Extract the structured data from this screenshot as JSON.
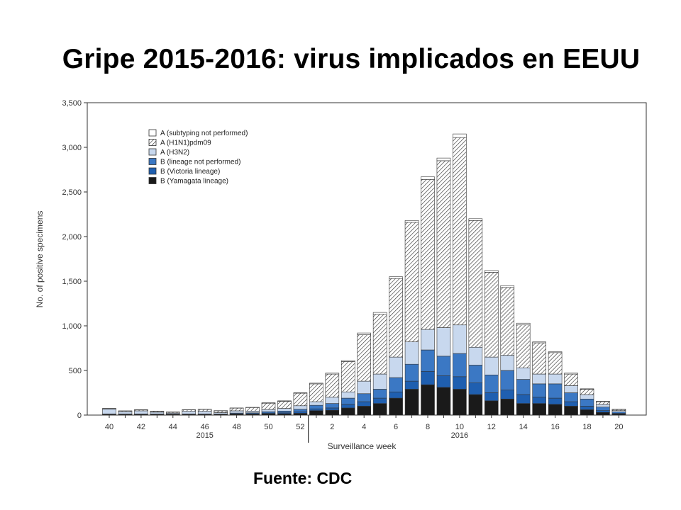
{
  "slide": {
    "title": "Gripe 2015-2016: virus implicados en EEUU",
    "source": "Fuente: CDC"
  },
  "colors": {
    "a_unsubtyped": "#ffffff",
    "a_h1n1": "hatch",
    "a_h3n2": "#c8d8ee",
    "b_lineage_np": "#3b78c4",
    "b_victoria": "#1f5fb0",
    "b_yamagata": "#1a1a1a"
  },
  "chart_data": {
    "type": "bar",
    "stacked": true,
    "title": "",
    "xlabel": "Surveillance week",
    "ylabel": "No. of positive specimens",
    "ylim": [
      0,
      3500
    ],
    "yticks": [
      "0",
      "500",
      "1,000",
      "1,500",
      "2,000",
      "2,500",
      "3,000",
      "3,500"
    ],
    "ytick_values": [
      0,
      500,
      1000,
      1500,
      2000,
      2500,
      3000,
      3500
    ],
    "categories": [
      "40",
      "41",
      "42",
      "43",
      "44",
      "45",
      "46",
      "47",
      "48",
      "49",
      "50",
      "51",
      "52",
      "1",
      "2",
      "3",
      "4",
      "5",
      "6",
      "7",
      "8",
      "9",
      "10",
      "11",
      "12",
      "13",
      "14",
      "15",
      "16",
      "17",
      "18",
      "19",
      "20"
    ],
    "xtick_labels": [
      "40",
      "",
      "42",
      "",
      "44",
      "",
      "46",
      "",
      "48",
      "",
      "50",
      "",
      "52",
      "",
      "2",
      "",
      "4",
      "",
      "6",
      "",
      "8",
      "",
      "10",
      "",
      "12",
      "",
      "14",
      "",
      "16",
      "",
      "18",
      "",
      "20"
    ],
    "year_labels": [
      {
        "label": "2015",
        "at_category": "46"
      },
      {
        "label": "2016",
        "at_category": "10"
      }
    ],
    "year_divider_after": "52",
    "legend": {
      "position": "top-left",
      "entries": [
        "A (subtyping not performed)",
        "A (H1N1)pdm09",
        "A (H3N2)",
        "B (lineage not performed)",
        "B (Victoria lineage)",
        "B (Yamagata lineage)"
      ]
    },
    "series": [
      {
        "name": "B (Yamagata lineage)",
        "values": [
          5,
          5,
          5,
          5,
          5,
          5,
          5,
          5,
          10,
          10,
          15,
          15,
          20,
          50,
          55,
          80,
          100,
          130,
          190,
          290,
          340,
          310,
          290,
          230,
          160,
          180,
          130,
          130,
          120,
          100,
          60,
          30,
          12
        ]
      },
      {
        "name": "B (Victoria lineage)",
        "values": [
          3,
          3,
          3,
          3,
          3,
          3,
          3,
          3,
          5,
          5,
          8,
          10,
          15,
          20,
          25,
          40,
          50,
          60,
          70,
          90,
          150,
          130,
          140,
          130,
          90,
          100,
          100,
          70,
          70,
          50,
          40,
          20,
          8
        ]
      },
      {
        "name": "B (lineage not performed)",
        "values": [
          5,
          5,
          5,
          5,
          5,
          5,
          5,
          5,
          8,
          10,
          15,
          20,
          30,
          40,
          50,
          70,
          90,
          100,
          160,
          190,
          240,
          220,
          260,
          200,
          200,
          220,
          170,
          150,
          160,
          100,
          80,
          40,
          15
        ]
      },
      {
        "name": "A (H3N2)",
        "values": [
          55,
          25,
          35,
          20,
          10,
          30,
          30,
          15,
          25,
          20,
          25,
          30,
          40,
          40,
          70,
          70,
          140,
          170,
          230,
          250,
          230,
          320,
          320,
          200,
          200,
          170,
          130,
          110,
          110,
          80,
          50,
          30,
          15
        ]
      },
      {
        "name": "A (H1N1)pdm09",
        "values": [
          5,
          8,
          10,
          10,
          10,
          15,
          20,
          20,
          30,
          40,
          70,
          80,
          140,
          200,
          260,
          340,
          520,
          670,
          880,
          1340,
          1680,
          1870,
          2100,
          1420,
          950,
          760,
          480,
          350,
          240,
          130,
          60,
          30,
          12
        ]
      },
      {
        "name": "A (subtyping not performed)",
        "values": [
          2,
          2,
          2,
          2,
          2,
          2,
          2,
          2,
          2,
          2,
          5,
          5,
          5,
          8,
          10,
          10,
          20,
          20,
          20,
          20,
          30,
          30,
          40,
          20,
          20,
          20,
          20,
          10,
          10,
          10,
          5,
          5,
          3
        ]
      }
    ]
  }
}
